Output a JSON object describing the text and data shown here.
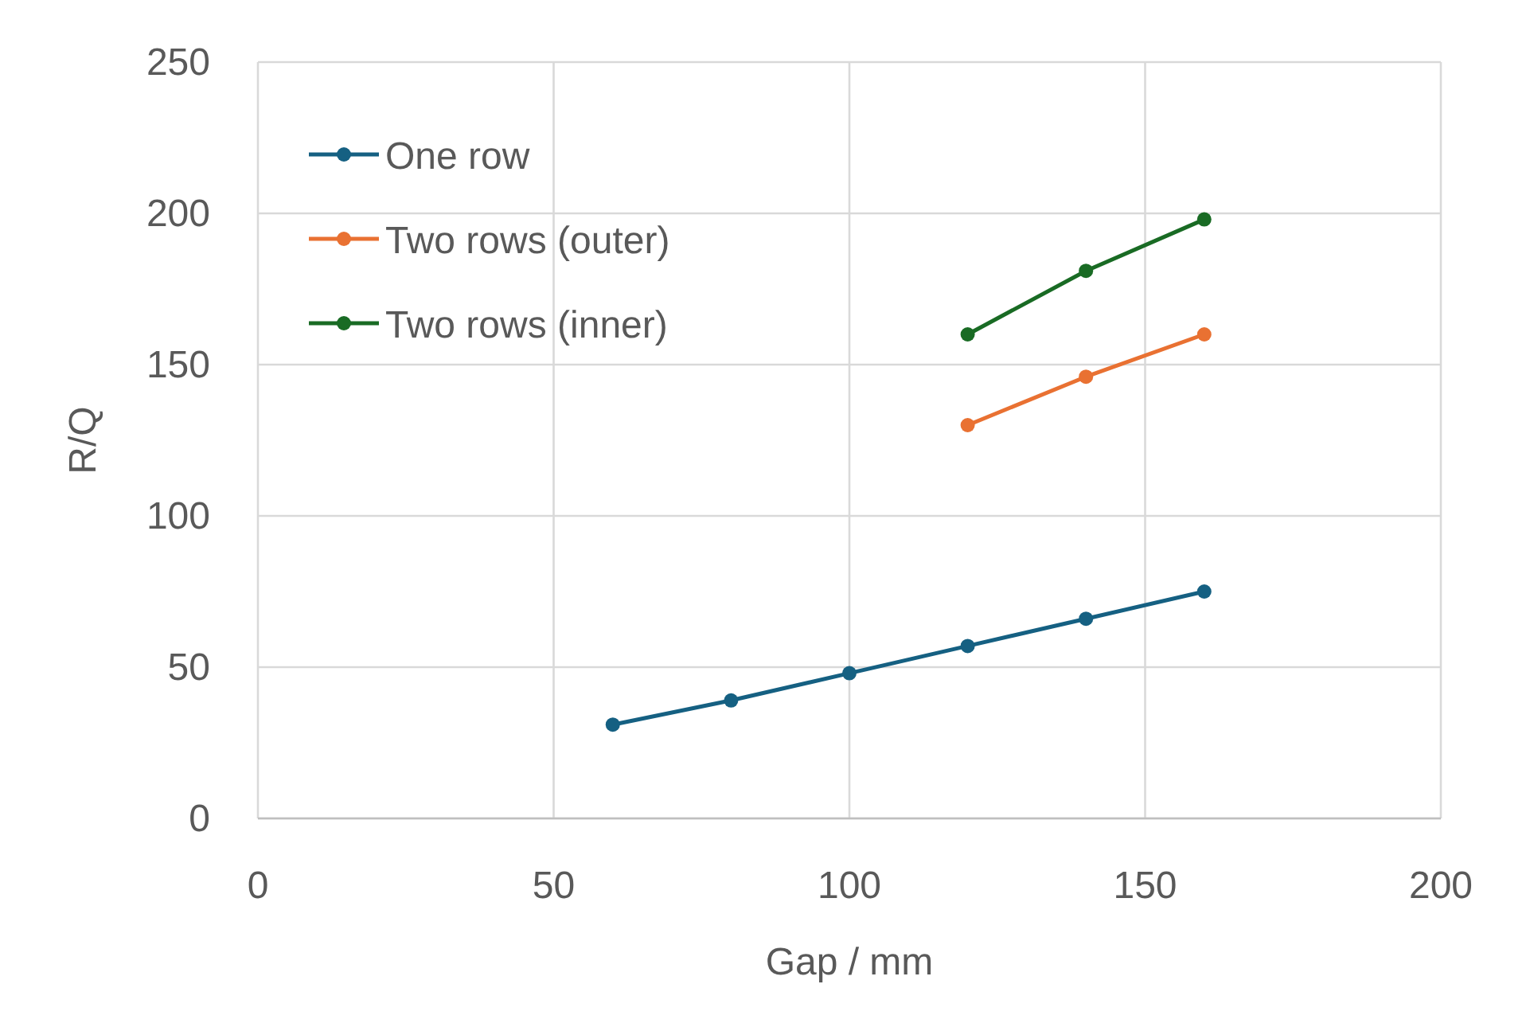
{
  "chart_data": {
    "type": "line",
    "xlabel": "Gap / mm",
    "ylabel": "R/Q",
    "xlim": [
      0,
      200
    ],
    "xticks": [
      0,
      50,
      100,
      150,
      200
    ],
    "ylim": [
      0,
      250
    ],
    "yticks": [
      0,
      50,
      100,
      150,
      200,
      250
    ],
    "grid": true,
    "legend": "top left",
    "marker": "circle",
    "line_style": "solid",
    "series": [
      {
        "name": "One row",
        "color": "#156082",
        "x": [
          60,
          80,
          100,
          120,
          140,
          160
        ],
        "values": [
          31,
          39,
          48,
          57,
          66,
          75
        ]
      },
      {
        "name": "Two rows (outer)",
        "color": "#e97132",
        "x": [
          120,
          140,
          160
        ],
        "values": [
          130,
          146,
          160
        ]
      },
      {
        "name": "Two rows (inner)",
        "color": "#196b24",
        "x": [
          120,
          140,
          160
        ],
        "values": [
          160,
          181,
          198
        ]
      }
    ]
  }
}
